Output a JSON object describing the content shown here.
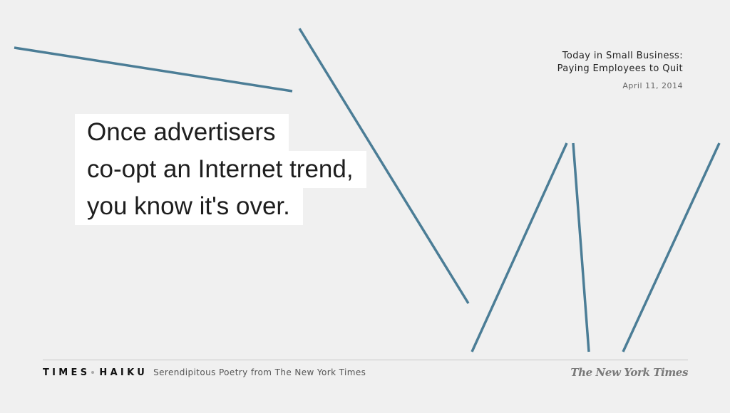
{
  "haiku": {
    "lines": [
      "Once advertisers",
      "co-opt an Internet trend,",
      "you know it's over."
    ]
  },
  "article": {
    "title_line1": "Today in Small Business:",
    "title_line2": "Paying Employees to Quit",
    "date": "April 11, 2014"
  },
  "footer": {
    "brand_times": "TIMES",
    "brand_haiku": "HAIKU",
    "tagline": "Serendipitous Poetry from The New York Times",
    "logo": "The New York Times"
  },
  "colors": {
    "background": "#f0f0f0",
    "line_accent": "#4b7d96"
  }
}
